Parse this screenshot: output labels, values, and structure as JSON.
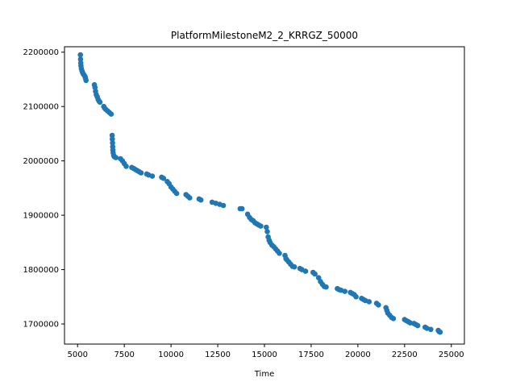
{
  "chart_data": {
    "type": "scatter",
    "title": "PlatformMilestoneM2_2_KRRGZ_50000",
    "xlabel": "Time",
    "ylabel": "",
    "xlim": [
      4300,
      25700
    ],
    "ylim": [
      1663000,
      2210000
    ],
    "xticks": [
      5000,
      7500,
      10000,
      12500,
      15000,
      17500,
      20000,
      22500,
      25000
    ],
    "xtick_labels": [
      "5000",
      "7500",
      "10000",
      "12500",
      "15000",
      "17500",
      "20000",
      "22500",
      "25000"
    ],
    "yticks": [
      1700000,
      1800000,
      1900000,
      2000000,
      2100000,
      2200000
    ],
    "ytick_labels": [
      "1700000",
      "1800000",
      "1900000",
      "2000000",
      "2100000",
      "2200000"
    ],
    "grid": false,
    "marker_color": "#1f77b4",
    "x": [
      5150,
      5160,
      5170,
      5180,
      5200,
      5230,
      5260,
      5300,
      5350,
      5400,
      5420,
      5450,
      5900,
      5930,
      5960,
      6000,
      6050,
      6100,
      6150,
      6200,
      6400,
      6450,
      6500,
      6600,
      6700,
      6800,
      6850,
      6860,
      6870,
      6880,
      6890,
      6900,
      6930,
      6960,
      7000,
      7050,
      7300,
      7400,
      7500,
      7600,
      7900,
      8000,
      8100,
      8200,
      8300,
      8400,
      8700,
      8800,
      9000,
      9500,
      9600,
      9800,
      9900,
      10000,
      10100,
      10200,
      10300,
      10800,
      10900,
      11000,
      11500,
      11600,
      12200,
      12400,
      12600,
      12800,
      13700,
      13800,
      14100,
      14200,
      14300,
      14400,
      14500,
      14600,
      14700,
      14800,
      15100,
      15150,
      15200,
      15250,
      15300,
      15400,
      15500,
      15600,
      15700,
      15800,
      16100,
      16150,
      16200,
      16300,
      16400,
      16500,
      16600,
      16900,
      17000,
      17200,
      17600,
      17700,
      17900,
      18000,
      18100,
      18200,
      18300,
      18900,
      19000,
      19100,
      19300,
      19600,
      19700,
      19800,
      19900,
      20200,
      20300,
      20400,
      20600,
      21000,
      21100,
      21500,
      21550,
      21600,
      21700,
      21800,
      21900,
      22500,
      22600,
      22700,
      22800,
      23000,
      23100,
      23200,
      23600,
      23700,
      23900,
      24300,
      24350,
      24400
    ],
    "y": [
      2195000,
      2187000,
      2180000,
      2175000,
      2170000,
      2166000,
      2163000,
      2160000,
      2158000,
      2155000,
      2152000,
      2148000,
      2140000,
      2135000,
      2128000,
      2122000,
      2118000,
      2113000,
      2110000,
      2108000,
      2100000,
      2097000,
      2095000,
      2092000,
      2089000,
      2086000,
      2047000,
      2040000,
      2033000,
      2026000,
      2020000,
      2015000,
      2010000,
      2008000,
      2007000,
      2006000,
      2004000,
      2000000,
      1995000,
      1990000,
      1988000,
      1986000,
      1984000,
      1982000,
      1980000,
      1978000,
      1976000,
      1974000,
      1972000,
      1970000,
      1968000,
      1962000,
      1958000,
      1952000,
      1948000,
      1944000,
      1940000,
      1938000,
      1935000,
      1932000,
      1930000,
      1928000,
      1924000,
      1922000,
      1920000,
      1918000,
      1912000,
      1912000,
      1902000,
      1896000,
      1892000,
      1890000,
      1886000,
      1884000,
      1882000,
      1880000,
      1878000,
      1870000,
      1860000,
      1854000,
      1850000,
      1845000,
      1842000,
      1838000,
      1834000,
      1830000,
      1826000,
      1820000,
      1818000,
      1814000,
      1810000,
      1806000,
      1805000,
      1802000,
      1800000,
      1797000,
      1795000,
      1792000,
      1785000,
      1778000,
      1773000,
      1769000,
      1768000,
      1765000,
      1763000,
      1762000,
      1760000,
      1758000,
      1756000,
      1754000,
      1750000,
      1747000,
      1745000,
      1743000,
      1741000,
      1738000,
      1735000,
      1730000,
      1725000,
      1720000,
      1716000,
      1712000,
      1710000,
      1708000,
      1706000,
      1704000,
      1702000,
      1701000,
      1699000,
      1697000,
      1694000,
      1692000,
      1690000,
      1688000,
      1686000,
      1685000
    ]
  }
}
